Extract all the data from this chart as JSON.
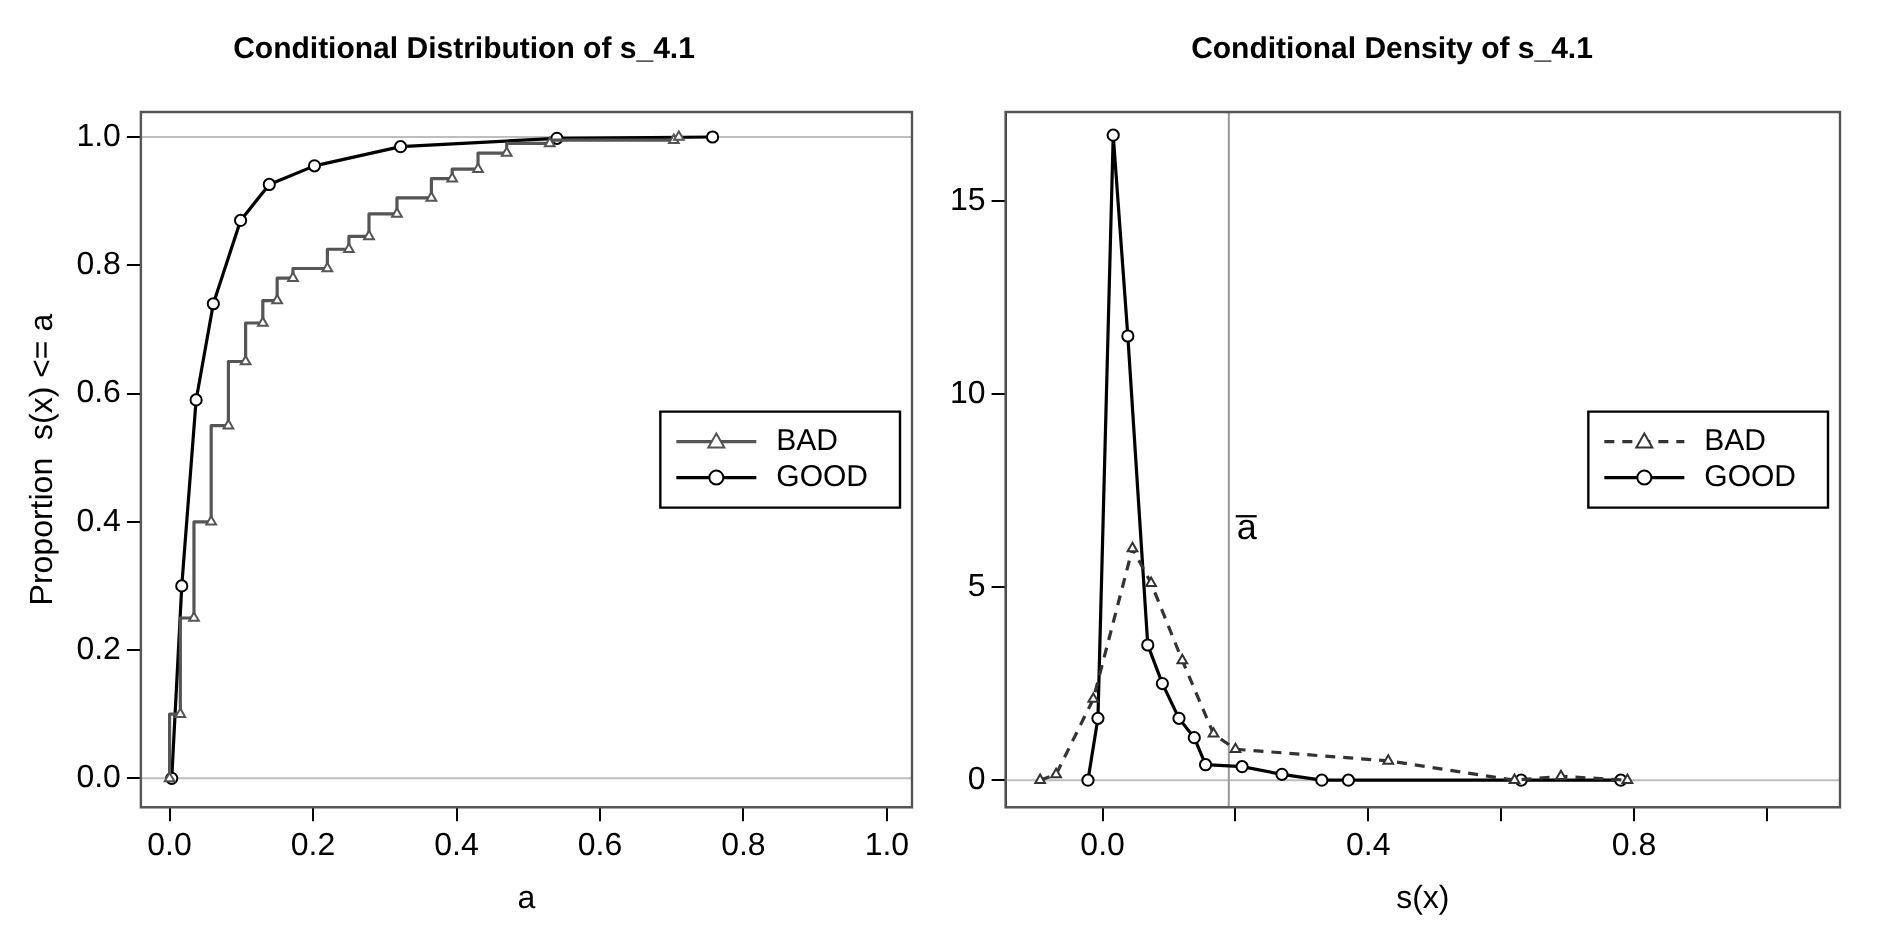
{
  "chart_data": [
    {
      "type": "line",
      "title": "Conditional Distribution of s_4.1",
      "xlabel": "a",
      "ylabel": "Proportion  s(x) <= a",
      "xlim": [
        -0.04,
        1.035
      ],
      "ylim": [
        -0.045,
        1.039
      ],
      "xticks": [
        {
          "value": 0,
          "label": "0.0"
        },
        {
          "value": 0.2,
          "label": "0.2"
        },
        {
          "value": 0.4,
          "label": "0.4"
        },
        {
          "value": 0.6,
          "label": "0.6"
        },
        {
          "value": 0.8,
          "label": "0.8"
        },
        {
          "value": 1,
          "label": "1.0"
        }
      ],
      "yticks": [
        {
          "value": 0,
          "label": "0.0"
        },
        {
          "value": 0.2,
          "label": "0.2"
        },
        {
          "value": 0.4,
          "label": "0.4"
        },
        {
          "value": 0.6,
          "label": "0.6"
        },
        {
          "value": 0.8,
          "label": "0.8"
        },
        {
          "value": 1,
          "label": "1.0"
        }
      ],
      "grid": false,
      "legend": "right",
      "ref_lines": [
        {
          "axis": "y",
          "value": 0,
          "color": "#bebebe"
        },
        {
          "axis": "y",
          "value": 1,
          "color": "#bebebe"
        }
      ],
      "series": [
        {
          "name": "BAD",
          "type": "step",
          "color": "#555555",
          "marker": "triangle",
          "x": [
            0,
            0.015,
            0.034,
            0.058,
            0.082,
            0.106,
            0.13,
            0.15,
            0.172,
            0.22,
            0.25,
            0.278,
            0.317,
            0.365,
            0.394,
            0.43,
            0.47,
            0.53,
            0.703,
            0.71
          ],
          "values": [
            0,
            0.1,
            0.25,
            0.4,
            0.55,
            0.65,
            0.71,
            0.745,
            0.78,
            0.795,
            0.825,
            0.845,
            0.88,
            0.905,
            0.935,
            0.95,
            0.975,
            0.99,
            0.995,
            1
          ]
        },
        {
          "name": "GOOD",
          "color": "#000000",
          "marker": "circle",
          "x": [
            0.003,
            0.017,
            0.037,
            0.061,
            0.099,
            0.139,
            0.202,
            0.322,
            0.54,
            0.757
          ],
          "values": [
            0,
            0.3,
            0.59,
            0.74,
            0.87,
            0.926,
            0.955,
            0.985,
            0.998,
            1
          ]
        }
      ]
    },
    {
      "type": "line",
      "title": "Conditional Density of s_4.1",
      "xlabel": "s(x)",
      "xlim": [
        -0.146,
        1.11
      ],
      "ylim": [
        -0.7,
        17.3
      ],
      "xticks": [
        {
          "value": 0,
          "label": "0.0"
        },
        {
          "value": 0.2,
          "label": null
        },
        {
          "value": 0.4,
          "label": "0.4"
        },
        {
          "value": 0.6,
          "label": null
        },
        {
          "value": 0.8,
          "label": "0.8"
        },
        {
          "value": 1,
          "label": null
        }
      ],
      "yticks": [
        0,
        5,
        10,
        15
      ],
      "grid": false,
      "legend": "right",
      "ref_lines": [
        {
          "axis": "y",
          "value": 0,
          "color": "#bebebe"
        },
        {
          "axis": "x",
          "value": 0.19,
          "label": "a̅",
          "color": "#999999"
        }
      ],
      "series": [
        {
          "name": "BAD",
          "color": "#333333",
          "marker": "triangle",
          "line_style": "dashed",
          "x": [
            -0.094,
            -0.07,
            -0.014,
            0.045,
            0.073,
            0.12,
            0.167,
            0.2,
            0.43,
            0.62,
            0.69,
            0.79
          ],
          "values": [
            0,
            0.15,
            2.1,
            6,
            5.1,
            3.1,
            1.2,
            0.8,
            0.5,
            0,
            0.1,
            0
          ]
        },
        {
          "name": "GOOD",
          "color": "#000000",
          "marker": "circle",
          "line_style": "solid",
          "x": [
            -0.022,
            -0.007,
            0.016,
            0.038,
            0.068,
            0.09,
            0.115,
            0.138,
            0.155,
            0.21,
            0.27,
            0.33,
            0.37,
            0.63,
            0.78
          ],
          "values": [
            0,
            1.6,
            16.7,
            11.5,
            3.5,
            2.5,
            1.6,
            1.1,
            0.4,
            0.35,
            0.15,
            0,
            0,
            0,
            0
          ]
        }
      ]
    }
  ]
}
